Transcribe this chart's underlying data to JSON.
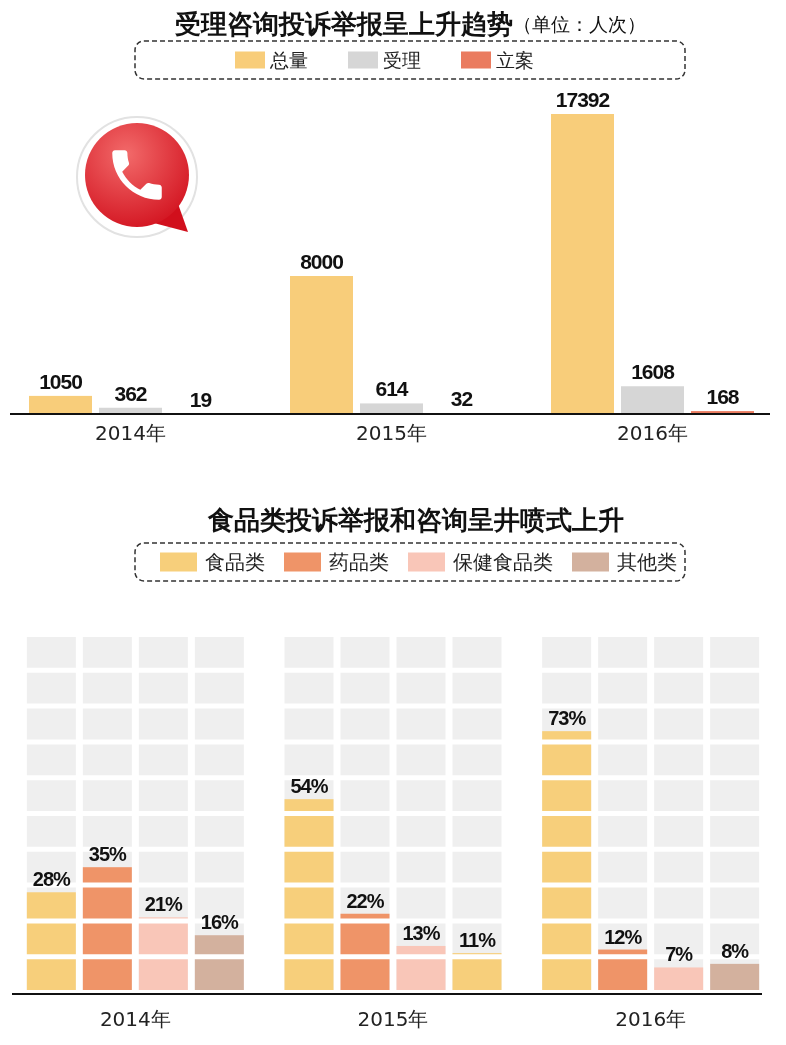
{
  "chart_data": [
    {
      "type": "bar",
      "title": "受理咨询投诉举报呈上升趋势",
      "subtitle": "（单位：人次）",
      "categories": [
        "2014年",
        "2015年",
        "2016年"
      ],
      "series": [
        {
          "name": "总量",
          "color": "#f8cd7a",
          "values": [
            1050,
            8000,
            17392
          ]
        },
        {
          "name": "受理",
          "color": "#d6d6d6",
          "values": [
            362,
            614,
            1608
          ]
        },
        {
          "name": "立案",
          "color": "#ea7b5f",
          "values": [
            19,
            32,
            168
          ]
        }
      ],
      "data_labels": true,
      "legend": "top"
    },
    {
      "type": "bar",
      "title": "食品类投诉举报和咨询呈井喷式上升",
      "categories": [
        "2014年",
        "2015年",
        "2016年"
      ],
      "series": [
        {
          "name": "食品类",
          "color": "#f7cf7b",
          "values": [
            28,
            54,
            73
          ],
          "value_labels": [
            "28%",
            "54%",
            "73%"
          ]
        },
        {
          "name": "药品类",
          "color": "#ef9468",
          "values": [
            35,
            22,
            12
          ],
          "value_labels": [
            "35%",
            "22%",
            "12%"
          ]
        },
        {
          "name": "保健食品类",
          "color": "#f9c6b8",
          "values": [
            21,
            13,
            7
          ],
          "value_labels": [
            "21%",
            "13%",
            "7%"
          ]
        },
        {
          "name": "其他类",
          "color": "#d3b19e",
          "colors": [
            "#d3b19e",
            "#f7cf7b",
            "#d3b19e"
          ],
          "values": [
            16,
            11,
            8
          ],
          "value_labels": [
            "16%",
            "11%",
            "8%"
          ]
        }
      ],
      "ylim": [
        0,
        100
      ],
      "yticks": [
        {
          "value": 0,
          "label": null
        },
        {
          "value": 10,
          "label": null
        },
        {
          "value": 20,
          "label": null
        },
        {
          "value": 30,
          "label": null
        },
        {
          "value": 40,
          "label": null
        },
        {
          "value": 50,
          "label": null
        },
        {
          "value": 60,
          "label": null
        },
        {
          "value": 70,
          "label": null
        },
        {
          "value": 80,
          "label": null
        },
        {
          "value": 90,
          "label": null
        },
        {
          "value": 100,
          "label": null
        }
      ],
      "grid": "y",
      "tick_labels": "x",
      "legend": "top"
    }
  ]
}
